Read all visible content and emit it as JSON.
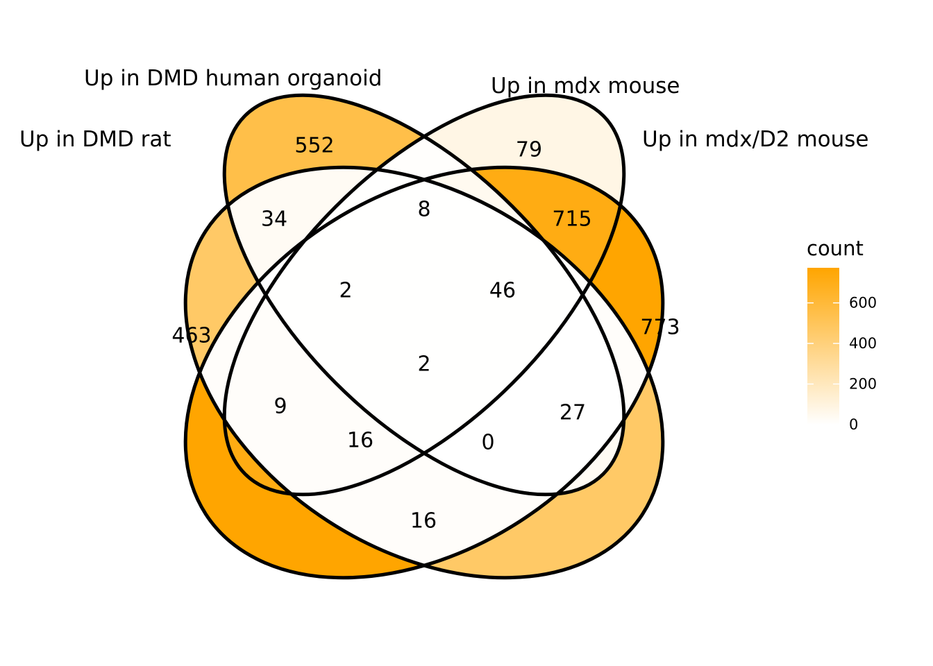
{
  "sets": [
    {
      "id": "A",
      "label": "Up in DMD rat"
    },
    {
      "id": "B",
      "label": "Up in DMD human organoid"
    },
    {
      "id": "C",
      "label": "Up in mdx mouse"
    },
    {
      "id": "D",
      "label": "Up in mdx/D2 mouse"
    }
  ],
  "regions": [
    {
      "sets": [
        "A"
      ],
      "count": 463
    },
    {
      "sets": [
        "B"
      ],
      "count": 552
    },
    {
      "sets": [
        "C"
      ],
      "count": 79
    },
    {
      "sets": [
        "D"
      ],
      "count": 773
    },
    {
      "sets": [
        "A",
        "B"
      ],
      "count": 34
    },
    {
      "sets": [
        "B",
        "C"
      ],
      "count": 8
    },
    {
      "sets": [
        "C",
        "D"
      ],
      "count": 715
    },
    {
      "sets": [
        "A",
        "B",
        "C"
      ],
      "count": 2
    },
    {
      "sets": [
        "B",
        "C",
        "D"
      ],
      "count": 46
    },
    {
      "sets": [
        "A",
        "B",
        "C",
        "D"
      ],
      "count": 2
    },
    {
      "sets": [
        "A",
        "C"
      ],
      "count": 9
    },
    {
      "sets": [
        "B",
        "D"
      ],
      "count": 27
    },
    {
      "sets": [
        "A",
        "C",
        "D"
      ],
      "count": 16
    },
    {
      "sets": [
        "A",
        "B",
        "D"
      ],
      "count": 0
    },
    {
      "sets": [
        "A",
        "D"
      ],
      "count": 16
    }
  ],
  "legend": {
    "title": "count",
    "ticks": [
      0,
      200,
      400,
      600
    ],
    "range": [
      0,
      773
    ],
    "low_color": "#FFFFFF",
    "high_color": "#FFA500"
  }
}
